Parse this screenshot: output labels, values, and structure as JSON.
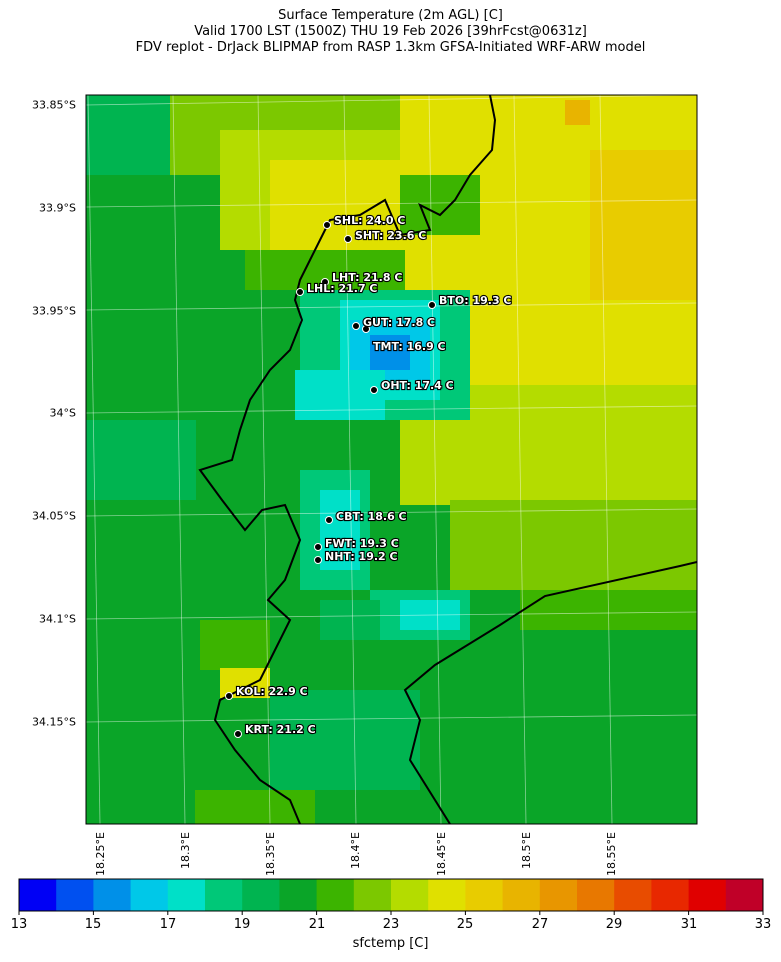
{
  "title": {
    "line1": "Surface Temperature (2m AGL) [C]",
    "line2": "Valid 1700 LST (1500Z) THU 19 Feb 2026 [39hrFcst@0631z]",
    "line3": "FDV replot - DrJack BLIPMAP from RASP 1.3km GFSA-Initiated WRF-ARW model"
  },
  "lat_labels": [
    "33.85°S",
    "33.9°S",
    "33.95°S",
    "34°S",
    "34.05°S",
    "34.1°S",
    "34.15°S"
  ],
  "lon_labels": [
    "18.25°E",
    "18.3°E",
    "18.35°E",
    "18.4°E",
    "18.45°E",
    "18.5°E",
    "18.55°E"
  ],
  "stations": [
    {
      "label": "SHL: 24.0 C"
    },
    {
      "label": "SHT: 23.6 C"
    },
    {
      "label": "LHT: 21.8 C"
    },
    {
      "label": "LHL: 21.7 C"
    },
    {
      "label": "BTO: 19.3 C"
    },
    {
      "label": "GUT: 17.8 C"
    },
    {
      "label": "TMT: 16.9 C"
    },
    {
      "label": "OHT: 17.4 C"
    },
    {
      "label": "CBT: 18.6 C"
    },
    {
      "label": "FWT: 19.3 C"
    },
    {
      "label": "NHT: 19.2 C"
    },
    {
      "label": "KOL: 22.9 C"
    },
    {
      "label": "KRT: 21.2 C"
    }
  ],
  "colorbar": {
    "label": "sfctemp [C]",
    "tick_labels": [
      "13",
      "15",
      "17",
      "19",
      "21",
      "23",
      "25",
      "27",
      "29",
      "31",
      "33"
    ],
    "min": 13,
    "max": 33,
    "colors": [
      "#0000f5",
      "#0050f0",
      "#0090e8",
      "#00c8e8",
      "#00e0c8",
      "#00c878",
      "#00b450",
      "#0aa528",
      "#3cb400",
      "#7cc800",
      "#b4dc00",
      "#e0e000",
      "#e8cc00",
      "#e8b400",
      "#e89600",
      "#e87800",
      "#e84c00",
      "#e82800",
      "#e00000",
      "#c00028"
    ]
  }
}
